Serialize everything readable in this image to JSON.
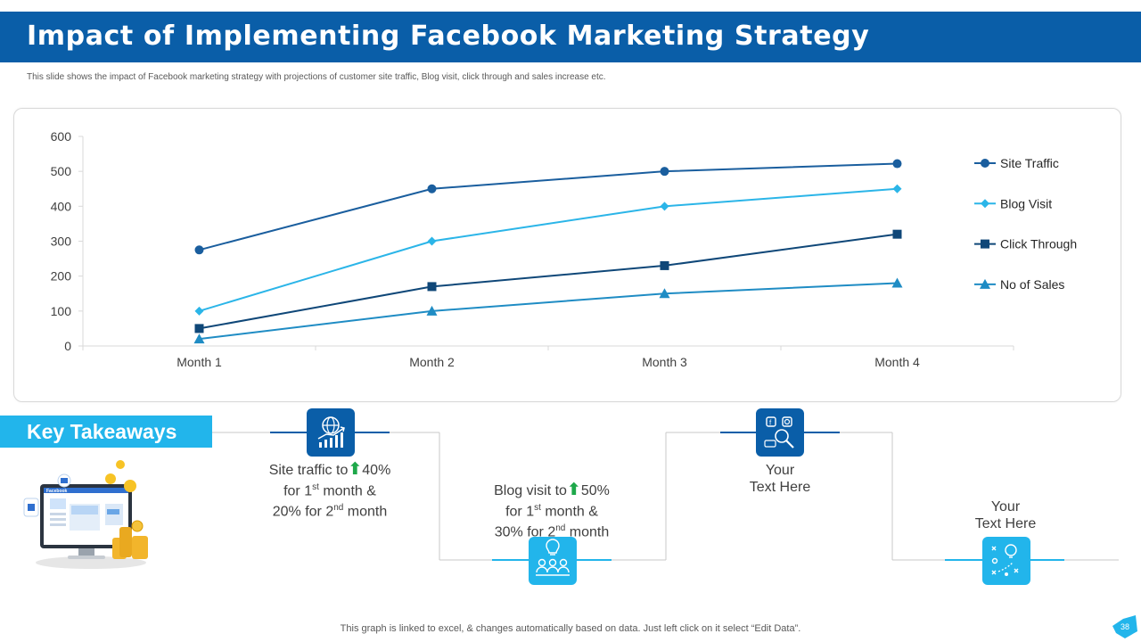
{
  "header": {
    "title": "Impact of Implementing Facebook Marketing Strategy"
  },
  "subtitle": "This slide shows the impact of Facebook marketing strategy with projections of customer site traffic, Blog visit, click through and sales increase etc.",
  "chart_data": {
    "type": "line",
    "title": "",
    "xlabel": "",
    "ylabel": "",
    "categories": [
      "Month 1",
      "Month 2",
      "Month 3",
      "Month 4"
    ],
    "ylim": [
      0,
      600
    ],
    "yticks": [
      0,
      100,
      200,
      300,
      400,
      500,
      600
    ],
    "grid": false,
    "legend_position": "right",
    "series": [
      {
        "name": "Site Traffic",
        "values": [
          275,
          450,
          500,
          522
        ],
        "color": "#1a5e9e",
        "marker": "circle"
      },
      {
        "name": "Blog Visit",
        "values": [
          100,
          300,
          400,
          450
        ],
        "color": "#2bb5e8",
        "marker": "diamond"
      },
      {
        "name": "Click Through",
        "values": [
          50,
          170,
          230,
          320
        ],
        "color": "#0f4778",
        "marker": "square"
      },
      {
        "name": "No of Sales",
        "values": [
          20,
          100,
          150,
          180
        ],
        "color": "#1f8cc4",
        "marker": "triangle"
      }
    ]
  },
  "key_takeaways": {
    "title": "Key Takeaways",
    "illustration_label": "Facebook",
    "items": [
      {
        "line1_pre": "Site traffic to",
        "line1_value": "40%",
        "line2": "for 1",
        "line2_sup": "st",
        "line2_post": " month &",
        "line3": "20% for 2",
        "line3_sup": "nd",
        "line3_post": " month",
        "icon": "globe-growth-chart-icon"
      },
      {
        "line1_pre": "Blog visit to",
        "line1_value": "50%",
        "line2": "for 1",
        "line2_sup": "st",
        "line2_post": " month &",
        "line3": "30% for 2",
        "line3_sup": "nd",
        "line3_post": " month",
        "icon": "team-idea-icon"
      },
      {
        "line1": "Your",
        "line2": "Text Here",
        "icon": "social-media-search-icon"
      },
      {
        "line1": "Your",
        "line2": "Text Here",
        "icon": "strategy-lightbulb-icon"
      }
    ],
    "up_arrow": "⬆"
  },
  "footer": {
    "note": "This graph is linked to excel,  & changes automatically based on data. Just left click on it select “Edit Data”."
  },
  "page_number": "38",
  "colors": {
    "primary": "#0a5ea8",
    "accent": "#22b5eb",
    "arrow": "#1ea84a"
  }
}
